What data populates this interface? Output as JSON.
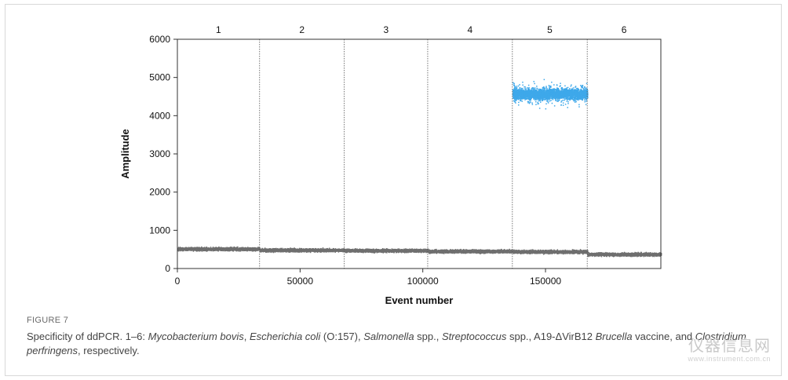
{
  "figure": {
    "label": "FIGURE 7",
    "caption": {
      "part1": "Specificity of ddPCR. 1–6: ",
      "org1": "Mycobacterium bovis",
      "sep1": ", ",
      "org2": "Escherichia coli",
      "sep2": " (O:157), ",
      "org3": "Salmonella",
      "sep3": " spp., ",
      "org4": "Streptococcus",
      "sep4": " spp., A19-ΔVirB12 ",
      "org5": "Brucella",
      "sep5": " vaccine, and ",
      "org6": "Clostridium perfringens",
      "end": ", respectively."
    }
  },
  "watermark": {
    "main": "仪器信息网",
    "sub": "www.instrument.com.cn"
  },
  "chart_data": {
    "type": "scatter",
    "xlabel": "Event number",
    "ylabel": "Amplitude",
    "xlim": [
      0,
      197000
    ],
    "ylim": [
      0,
      6000
    ],
    "xticks": [
      0,
      50000,
      100000,
      150000
    ],
    "yticks": [
      0,
      1000,
      2000,
      3000,
      4000,
      5000,
      6000
    ],
    "grid": false,
    "well_dividers": [
      33500,
      68000,
      102000,
      136500,
      167000
    ],
    "wells": [
      {
        "label": "1",
        "x_range": [
          0,
          33500
        ],
        "negative_amplitude": 520,
        "positive_amplitude": null
      },
      {
        "label": "2",
        "x_range": [
          33500,
          68000
        ],
        "negative_amplitude": 490,
        "positive_amplitude": null
      },
      {
        "label": "3",
        "x_range": [
          68000,
          102000
        ],
        "negative_amplitude": 480,
        "positive_amplitude": null
      },
      {
        "label": "4",
        "x_range": [
          102000,
          136500
        ],
        "negative_amplitude": 460,
        "positive_amplitude": null
      },
      {
        "label": "5",
        "x_range": [
          136500,
          167000
        ],
        "negative_amplitude": 450,
        "positive_amplitude": 4580
      },
      {
        "label": "6",
        "x_range": [
          167000,
          197000
        ],
        "negative_amplitude": 380,
        "positive_amplitude": null
      }
    ],
    "series": [
      {
        "color": "#6f6f6f",
        "values_description": "negative droplets"
      },
      {
        "color": "#3ea8ea",
        "values_description": "positive droplets"
      }
    ]
  }
}
